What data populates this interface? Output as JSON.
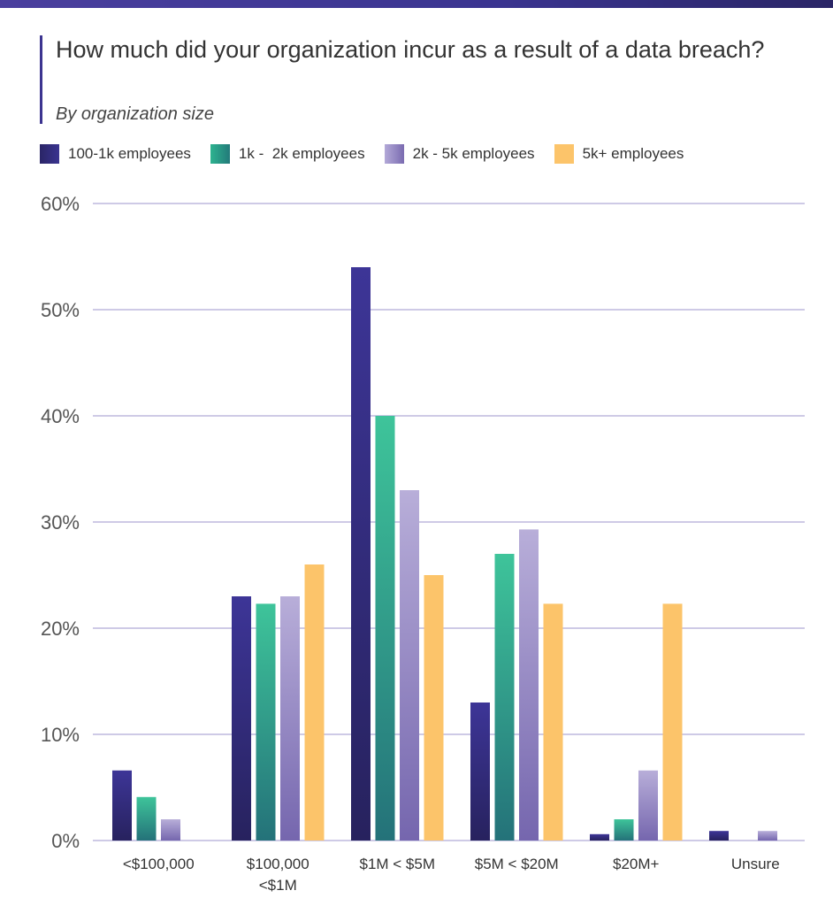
{
  "chart_data": {
    "type": "bar",
    "title": "How much did your organization incur as a result of a data breach?",
    "subtitle": "By organization size",
    "categories": [
      "<$100,000",
      "$100,000 <$1M",
      "$1M < $5M",
      "$5M < $20M",
      "$20M+",
      "Unsure"
    ],
    "category_lines": [
      [
        "<$100,000"
      ],
      [
        "$100,000",
        "<$1M"
      ],
      [
        "$1M < $5M"
      ],
      [
        "$5M < $20M"
      ],
      [
        "$20M+"
      ],
      [
        "Unsure"
      ]
    ],
    "series": [
      {
        "name": "100-1k employees",
        "color": "#3a3490",
        "values": [
          6.6,
          23,
          54,
          13,
          0.6,
          0.9
        ]
      },
      {
        "name": "1k -  2k employees",
        "color": "#2db38f",
        "values": [
          4.1,
          22.3,
          40,
          27,
          2,
          0
        ]
      },
      {
        "name": "2k - 5k employees",
        "color": "#a89ccf",
        "values": [
          2,
          23,
          33,
          29.3,
          6.6,
          0.9
        ]
      },
      {
        "name": "5k+ employees",
        "color": "#fcc46a",
        "values": [
          0,
          26,
          25,
          22.3,
          22.3,
          0
        ]
      }
    ],
    "ylim": [
      0,
      60
    ],
    "yticks": [
      "0%",
      "10%",
      "20%",
      "30%",
      "40%",
      "50%",
      "60%"
    ],
    "grid": true,
    "legend": "top-left",
    "xlabel": "",
    "ylabel": ""
  }
}
